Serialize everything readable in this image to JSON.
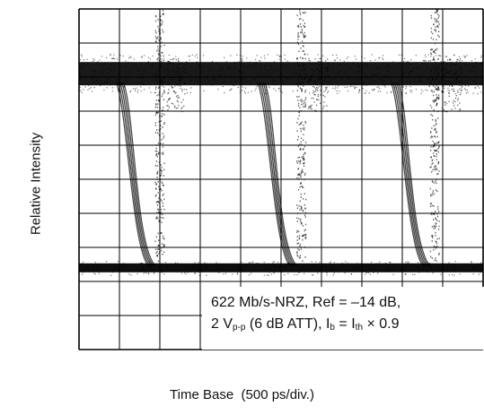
{
  "chart_data": {
    "type": "eye-diagram",
    "xlabel": "Time Base  (500 ps/div.)",
    "ylabel": "Relative Intensity",
    "grid": true,
    "divisions": {
      "x": 10,
      "y": 10
    },
    "annotation": {
      "line1": "622 Mb/s-NRZ, Ref = –14 dB,",
      "line2": {
        "amp": "2 V",
        "amp_sub": "p-p",
        "att": " (6 dB ATT), I",
        "ib_sub": "b",
        "eq": " = I",
        "ith_sub": "th",
        "tail": " × 0.9"
      }
    },
    "traces": {
      "levels": {
        "high_div": 8.1,
        "low_div": 2.4
      },
      "edges_x_div": [
        1.5,
        5.0,
        8.3
      ]
    }
  },
  "colors": {
    "trace": "#000000",
    "grid": "#000000",
    "background": "#ffffff"
  }
}
